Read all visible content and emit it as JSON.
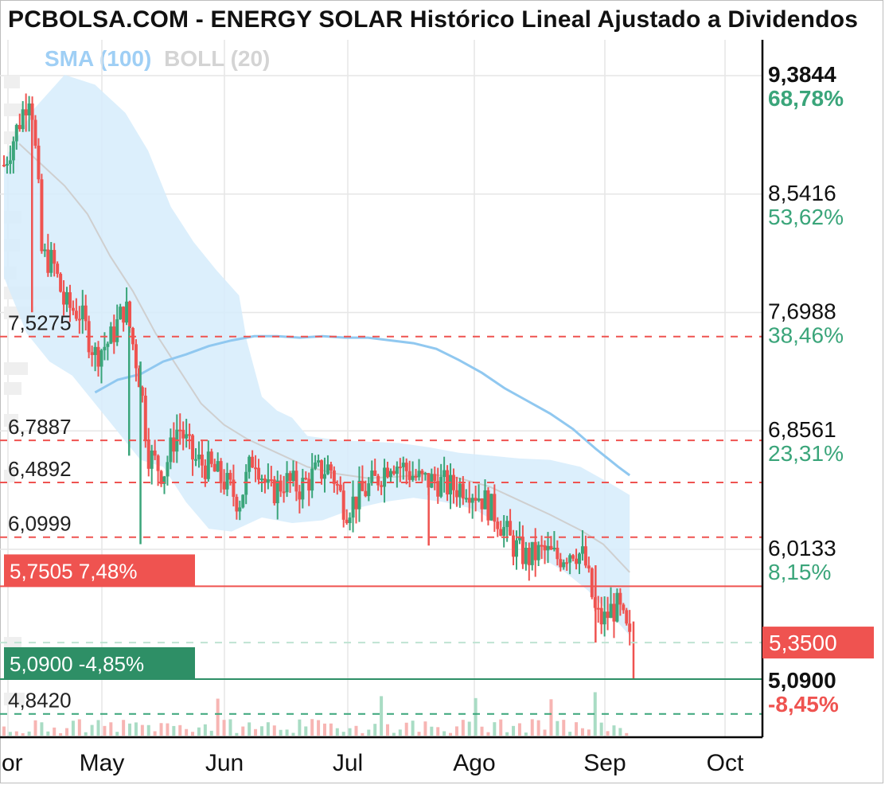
{
  "title": "PCBOLSA.COM - ENERGY SOLAR Histórico Lineal Ajustado a Dividendos",
  "legend": {
    "sma": "SMA (100)",
    "boll": "BOLL (20)"
  },
  "colors": {
    "up": "#3aa57a",
    "down": "#ef5350",
    "sma": "#90c8f0",
    "band": "#d6ecfb",
    "mid": "#cfcfcf",
    "grid": "#e6e6e6"
  },
  "chart_data": {
    "type": "candlestick",
    "x_ticks": [
      "or",
      "May",
      "Jun",
      "Jul",
      "Ago",
      "Sep",
      "Oct"
    ],
    "right_axis": [
      {
        "price": "9,3844",
        "pct": "68,78%",
        "bold": true
      },
      {
        "price": "8,5416",
        "pct": "53,62%"
      },
      {
        "price": "7,6988",
        "pct": "38,46%"
      },
      {
        "price": "6,8561",
        "pct": "23,31%"
      },
      {
        "price": "6,0133",
        "pct": "8,15%"
      }
    ],
    "current": {
      "price": "5,3500"
    },
    "low_marker": {
      "price": "5,0900",
      "pct": "-8,45%"
    },
    "levels_left": [
      "7,5275",
      "6,7887",
      "6,4892",
      "6,0999",
      "4,8420"
    ],
    "resistance": {
      "price": "5,7505",
      "pct": "7,48%"
    },
    "support": {
      "price": "5,0900",
      "pct": "-4,85%"
    },
    "sma100": [
      [
        0.12,
        7.13
      ],
      [
        0.15,
        7.22
      ],
      [
        0.18,
        7.26
      ],
      [
        0.21,
        7.35
      ],
      [
        0.24,
        7.4
      ],
      [
        0.27,
        7.46
      ],
      [
        0.3,
        7.5
      ],
      [
        0.33,
        7.53
      ],
      [
        0.36,
        7.53
      ],
      [
        0.39,
        7.52
      ],
      [
        0.42,
        7.53
      ],
      [
        0.45,
        7.52
      ],
      [
        0.48,
        7.52
      ],
      [
        0.51,
        7.5
      ],
      [
        0.54,
        7.48
      ],
      [
        0.57,
        7.44
      ],
      [
        0.6,
        7.36
      ],
      [
        0.63,
        7.27
      ],
      [
        0.66,
        7.16
      ],
      [
        0.69,
        7.07
      ],
      [
        0.72,
        6.98
      ],
      [
        0.75,
        6.87
      ],
      [
        0.78,
        6.73
      ],
      [
        0.81,
        6.6
      ],
      [
        0.825,
        6.54
      ]
    ]
  }
}
